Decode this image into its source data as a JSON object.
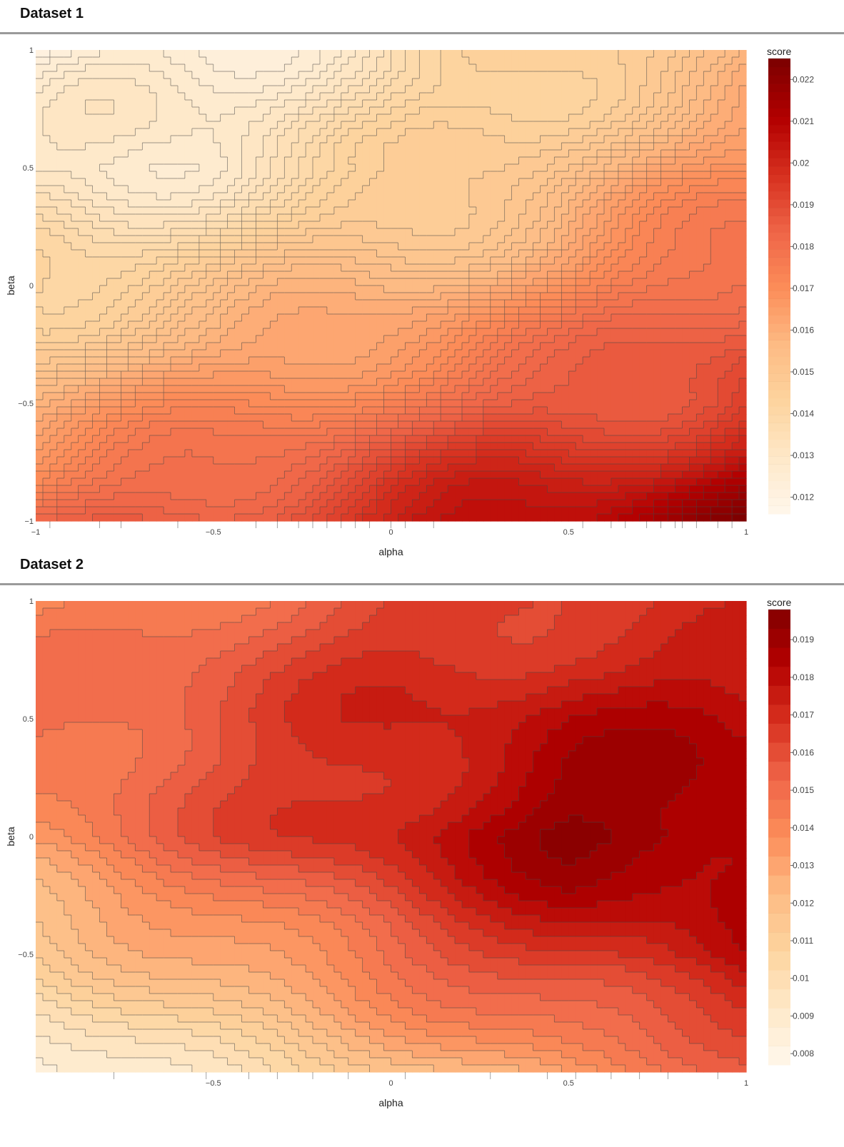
{
  "panels": [
    {
      "title": "Dataset 1",
      "chart_data": {
        "type": "heatmap",
        "subtype": "contour",
        "xlabel": "alpha",
        "ylabel": "beta",
        "xlim": [
          -1,
          1
        ],
        "ylim": [
          -1,
          1
        ],
        "x_ticks": [
          "−1",
          "−0.5",
          "0",
          "0.5",
          "1"
        ],
        "y_ticks": [
          "1",
          "0.5",
          "0",
          "−0.5",
          "−1"
        ],
        "colorbar_title": "score",
        "colorbar_ticks": [
          "0.022",
          "0.021",
          "0.02",
          "0.019",
          "0.018",
          "0.017",
          "0.016",
          "0.015",
          "0.014",
          "0.013",
          "0.012"
        ],
        "colorbar_range": [
          0.0116,
          0.0225
        ],
        "colorscale": "OrRd",
        "contour_step": 0.0002,
        "z_grid_approx": {
          "alpha": [
            -1,
            -0.5,
            0,
            0.5,
            1
          ],
          "beta": [
            1,
            0.5,
            0,
            -0.5,
            -1
          ],
          "z": [
            [
              0.012,
              0.0126,
              0.0136,
              0.0146,
              0.0154
            ],
            [
              0.0128,
              0.0132,
              0.014,
              0.0154,
              0.0166
            ],
            [
              0.0144,
              0.0148,
              0.0158,
              0.0168,
              0.0186
            ],
            [
              0.016,
              0.0168,
              0.018,
              0.0186,
              0.0196
            ],
            [
              0.018,
              0.019,
              0.02,
              0.021,
              0.022
            ]
          ]
        }
      }
    },
    {
      "title": "Dataset 2",
      "chart_data": {
        "type": "heatmap",
        "subtype": "contour",
        "xlabel": "alpha",
        "ylabel": "beta",
        "xlim": [
          -1,
          1
        ],
        "ylim": [
          -1,
          1
        ],
        "x_ticks": [
          "−0.5",
          "0",
          "0.5",
          "1"
        ],
        "y_ticks": [
          "1",
          "0.5",
          "0",
          "−0.5"
        ],
        "colorbar_title": "score",
        "colorbar_ticks": [
          "0.019",
          "0.018",
          "0.017",
          "0.016",
          "0.015",
          "0.014",
          "0.013",
          "0.012",
          "0.011",
          "0.01",
          "0.009",
          "0.008"
        ],
        "colorbar_range": [
          0.0077,
          0.0198
        ],
        "colorscale": "OrRd",
        "contour_step": 0.0005,
        "z_grid_approx": {
          "alpha": [
            -1,
            -0.5,
            0,
            0.5,
            1
          ],
          "beta": [
            1,
            0.5,
            0,
            -0.5,
            -1
          ],
          "z": [
            [
              0.0135,
              0.015,
              0.016,
              0.0165,
              0.0165
            ],
            [
              0.015,
              0.0158,
              0.017,
              0.018,
              0.018
            ],
            [
              0.0138,
              0.0155,
              0.0175,
              0.0192,
              0.019
            ],
            [
              0.011,
              0.0128,
              0.015,
              0.017,
              0.018
            ],
            [
              0.008,
              0.01,
              0.0115,
              0.0135,
              0.0148
            ]
          ]
        }
      }
    }
  ],
  "colors": {
    "orrd_scale": [
      "#fff7ec",
      "#fee8c8",
      "#fdd49e",
      "#fdbb84",
      "#fc8d59",
      "#ef6548",
      "#d7301f",
      "#b30000",
      "#7f0000"
    ],
    "contour_line": "#444444",
    "rule": "#9a9a9a"
  }
}
